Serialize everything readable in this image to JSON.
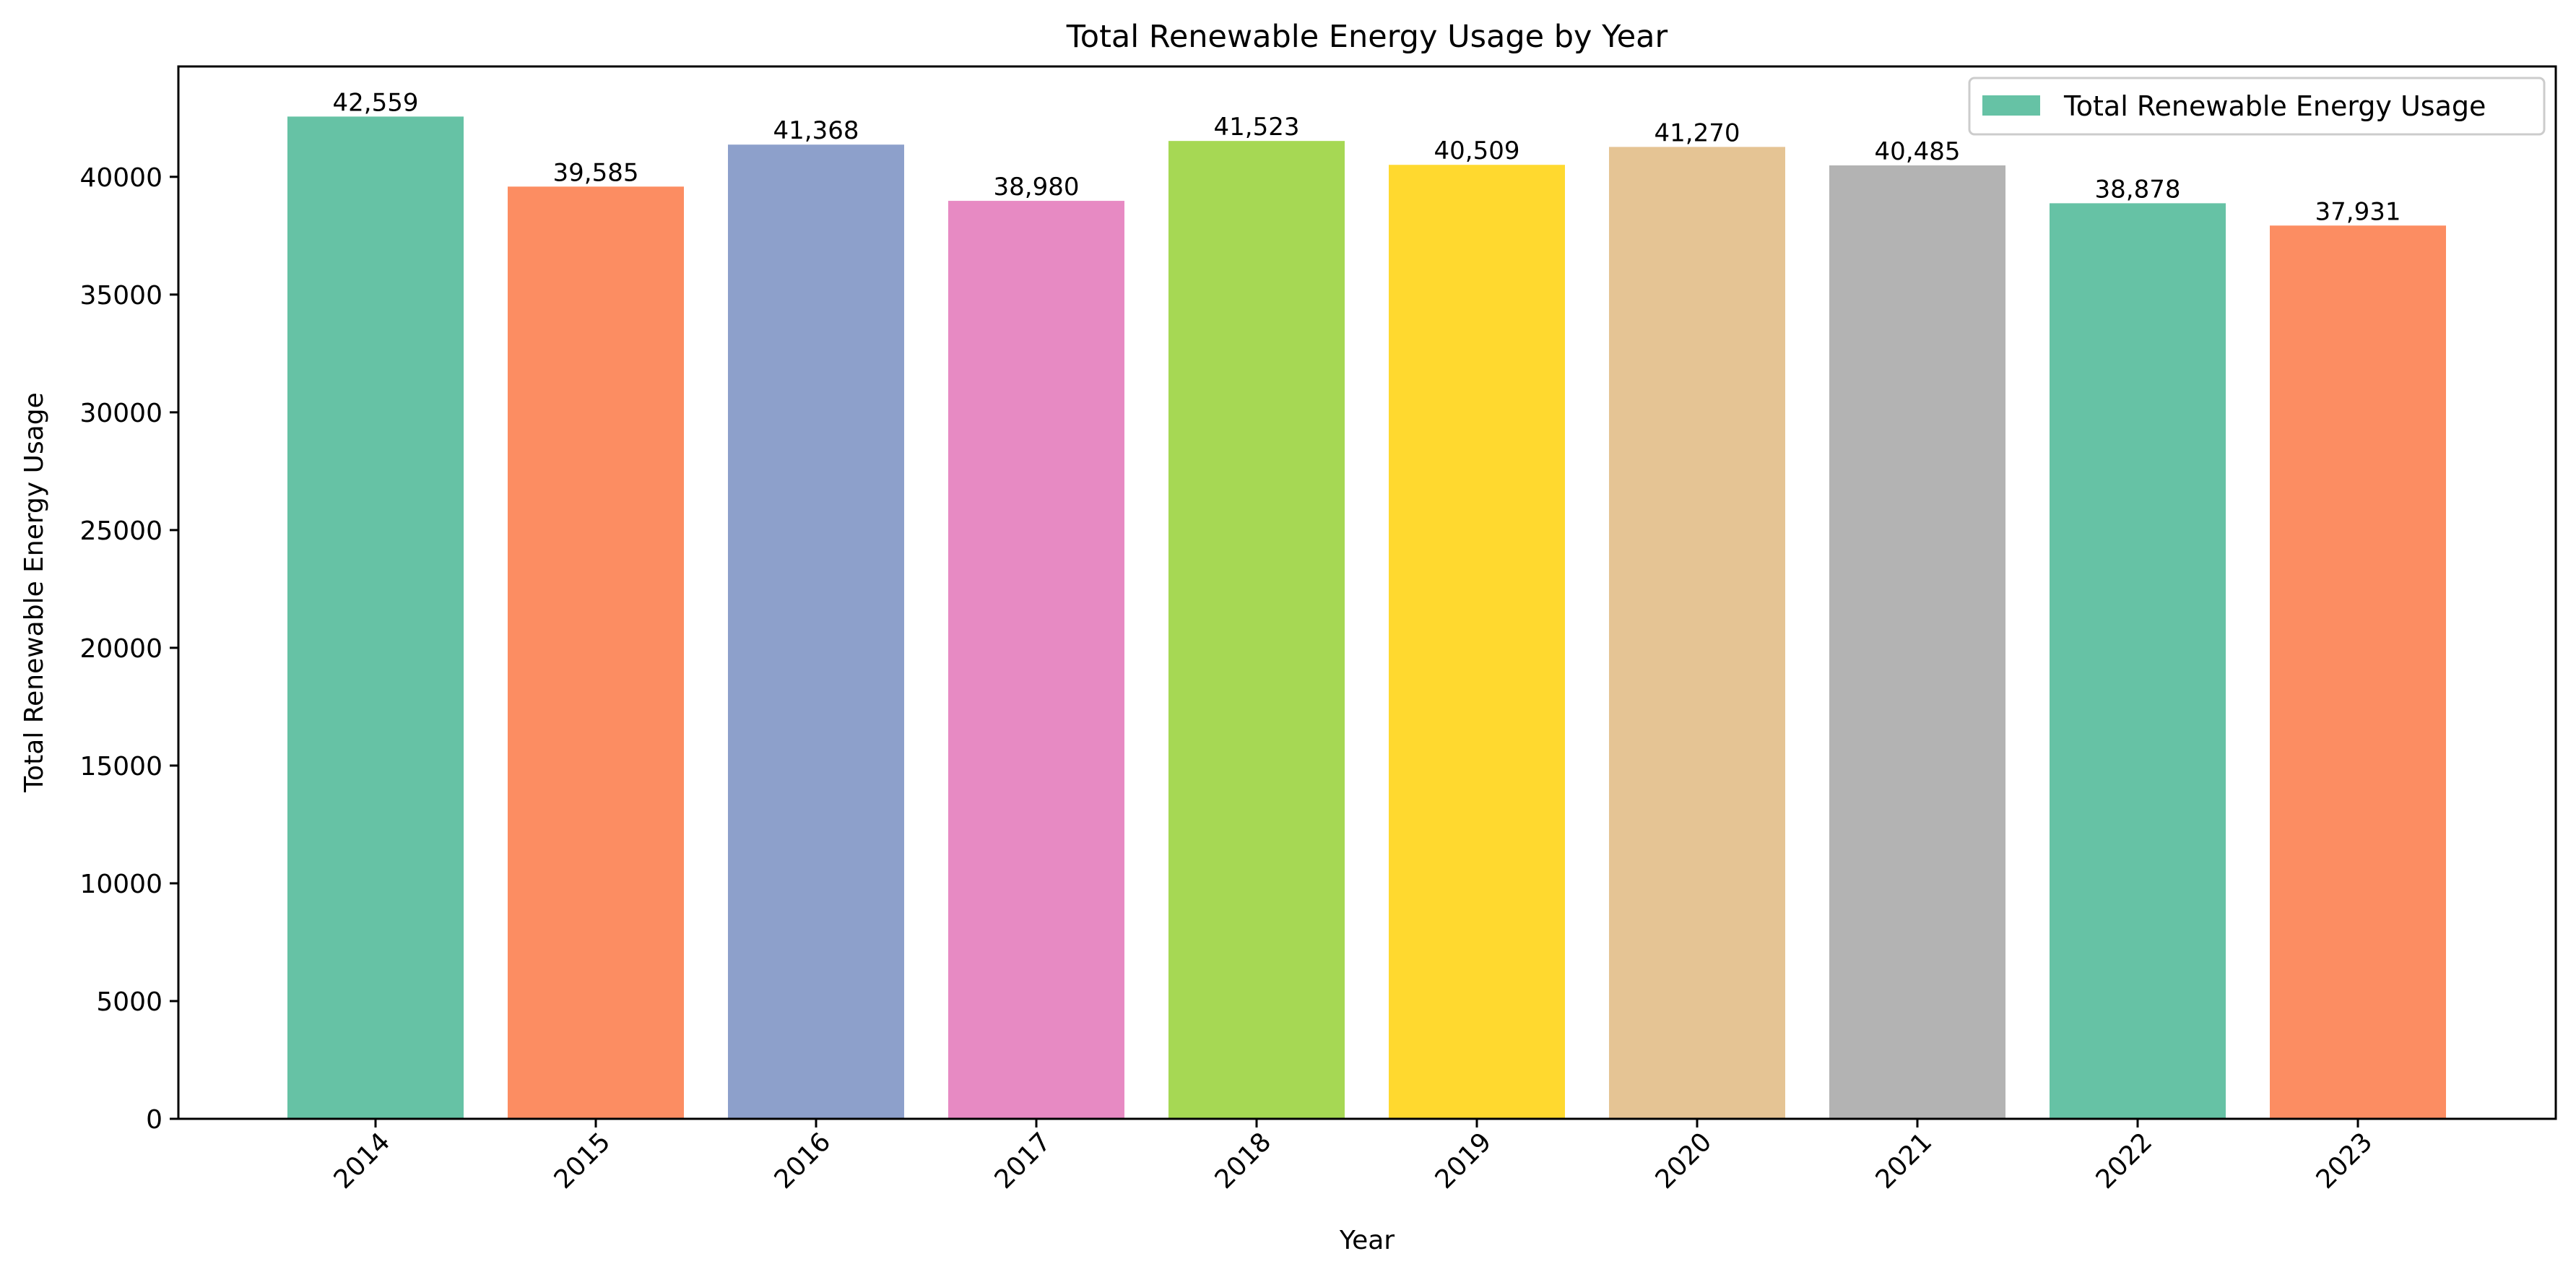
{
  "chart_data": {
    "type": "bar",
    "title": "Total Renewable Energy Usage by Year",
    "xlabel": "Year",
    "ylabel": "Total Renewable Energy Usage",
    "categories": [
      "2014",
      "2015",
      "2016",
      "2017",
      "2018",
      "2019",
      "2020",
      "2021",
      "2022",
      "2023"
    ],
    "values": [
      42559,
      39585,
      41368,
      38980,
      41523,
      40509,
      41270,
      40485,
      38878,
      37931
    ],
    "value_labels": [
      "42,559",
      "39,585",
      "41,368",
      "38,980",
      "41,523",
      "40,509",
      "41,270",
      "40,485",
      "38,878",
      "37,931"
    ],
    "bar_colors": [
      "#66c2a5",
      "#fc8d62",
      "#8da0cb",
      "#e78ac3",
      "#a6d854",
      "#ffd92f",
      "#e5c494",
      "#b3b3b3",
      "#66c2a5",
      "#fc8d62"
    ],
    "yticks": [
      0,
      5000,
      10000,
      15000,
      20000,
      25000,
      30000,
      35000,
      40000
    ],
    "ytick_labels": [
      "0",
      "5000",
      "10000",
      "15000",
      "20000",
      "25000",
      "30000",
      "35000",
      "40000"
    ],
    "ylim": [
      0,
      44687
    ],
    "grid": false,
    "xtick_rotation": 45,
    "legend": {
      "position": "top-right",
      "entries": [
        {
          "label": "Total Renewable Energy Usage",
          "color": "#66c2a5"
        }
      ]
    }
  }
}
